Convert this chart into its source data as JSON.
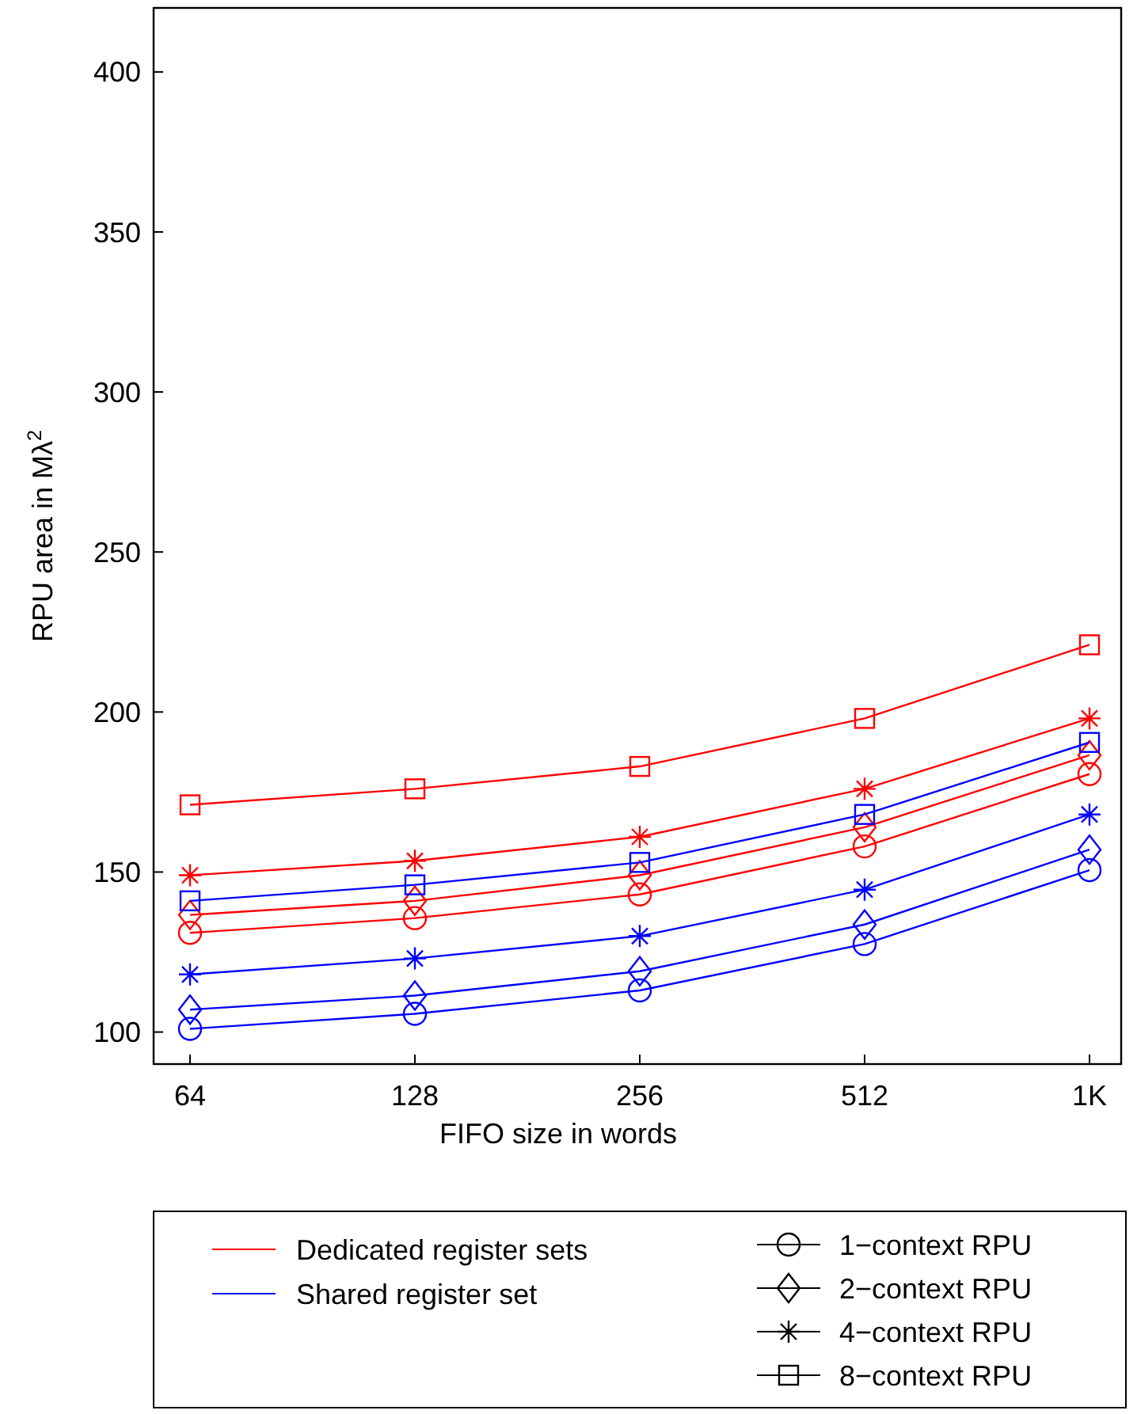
{
  "chart_data": {
    "type": "line",
    "xlabel": "FIFO size in words",
    "ylabel": "RPU area in Mλ$^{2}$",
    "categories": [
      "64",
      "128",
      "256",
      "512",
      "1K"
    ],
    "ylim": [
      90,
      420
    ],
    "yticks": [
      100,
      150,
      200,
      250,
      300,
      350,
      400
    ],
    "grid": false,
    "series": [
      {
        "color": "#ff0000",
        "marker": "circle",
        "values": [
          131,
          135.6,
          143,
          158,
          180.6
        ]
      },
      {
        "color": "#ff0000",
        "marker": "diamond",
        "values": [
          136.6,
          141,
          149,
          164,
          186.5
        ]
      },
      {
        "color": "#ff0000",
        "marker": "cross",
        "values": [
          149,
          153.5,
          161,
          176,
          198
        ]
      },
      {
        "color": "#ff0000",
        "marker": "square",
        "values": [
          171,
          176,
          183,
          198,
          221
        ]
      },
      {
        "color": "#0000ff",
        "marker": "circle",
        "values": [
          101,
          105.7,
          113,
          127.5,
          150.6
        ]
      },
      {
        "color": "#0000ff",
        "marker": "diamond",
        "values": [
          107,
          111.4,
          119,
          133.6,
          157
        ]
      },
      {
        "color": "#0000ff",
        "marker": "cross",
        "values": [
          118,
          123,
          130,
          144.5,
          168
        ]
      },
      {
        "color": "#0000ff",
        "marker": "square",
        "values": [
          141,
          146,
          153,
          168,
          190.5
        ]
      }
    ],
    "annotations": [
      "Dedicated register sets",
      "Shared register set",
      "1−context RPU",
      "2−context RPU",
      "4−context RPU",
      "8−context RPU"
    ]
  }
}
